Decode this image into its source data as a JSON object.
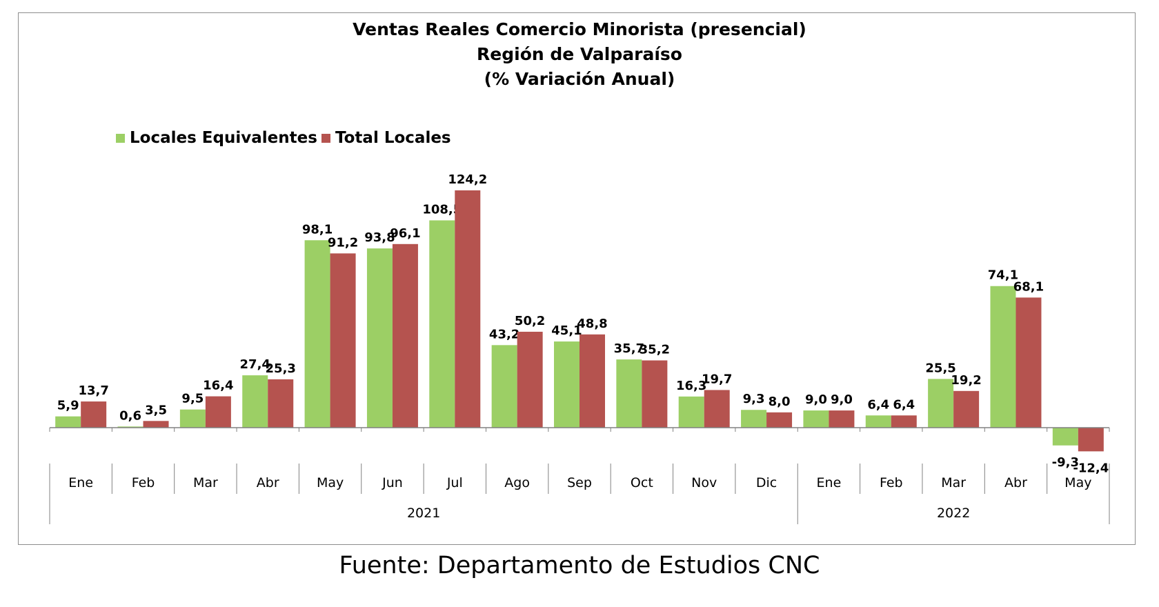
{
  "colors": {
    "series_1": "#9ccf65",
    "series_2": "#b5534f",
    "axis": "#808080",
    "text": "#000000"
  },
  "source_note": "Fuente: Departamento de Estudios CNC",
  "chart_data": {
    "type": "bar",
    "title": "Ventas Reales Comercio Minorista (presencial)",
    "subtitle_1": "Región de Valparaíso",
    "subtitle_2": "(% Variación Anual)",
    "categories": [
      "Ene",
      "Feb",
      "Mar",
      "Abr",
      "May",
      "Jun",
      "Jul",
      "Ago",
      "Sep",
      "Oct",
      "Nov",
      "Dic",
      "Ene",
      "Feb",
      "Mar",
      "Abr",
      "May"
    ],
    "category_groups": [
      {
        "label": "2021",
        "span": 12
      },
      {
        "label": "2022",
        "span": 5
      }
    ],
    "series": [
      {
        "name": "Locales Equivalentes",
        "color": "#9ccf65",
        "values": [
          5.9,
          0.6,
          9.5,
          27.4,
          98.1,
          93.8,
          108.5,
          43.2,
          45.1,
          35.7,
          16.3,
          9.3,
          9.0,
          6.4,
          25.5,
          74.1,
          -9.3
        ],
        "labels": [
          "5,9",
          "0,6",
          "9,5",
          "27,4",
          "98,1",
          "93,8",
          "108,5",
          "43,2",
          "45,1",
          "35,7",
          "16,3",
          "9,3",
          "9,0",
          "6,4",
          "25,5",
          "74,1",
          "-9,3"
        ]
      },
      {
        "name": "Total Locales",
        "color": "#b5534f",
        "values": [
          13.7,
          3.5,
          16.4,
          25.3,
          91.2,
          96.1,
          124.2,
          50.2,
          48.8,
          35.2,
          19.7,
          8.0,
          9.0,
          6.4,
          19.2,
          68.1,
          -12.4
        ],
        "labels": [
          "13,7",
          "3,5",
          "16,4",
          "25,3",
          "91,2",
          "96,1",
          "124,2",
          "50,2",
          "48,8",
          "35,2",
          "19,7",
          "8,0",
          "9,0",
          "6,4",
          "19,2",
          "68,1",
          "-12,4"
        ]
      }
    ],
    "legend_position": "top-left",
    "grid": false,
    "data_labels": true
  }
}
